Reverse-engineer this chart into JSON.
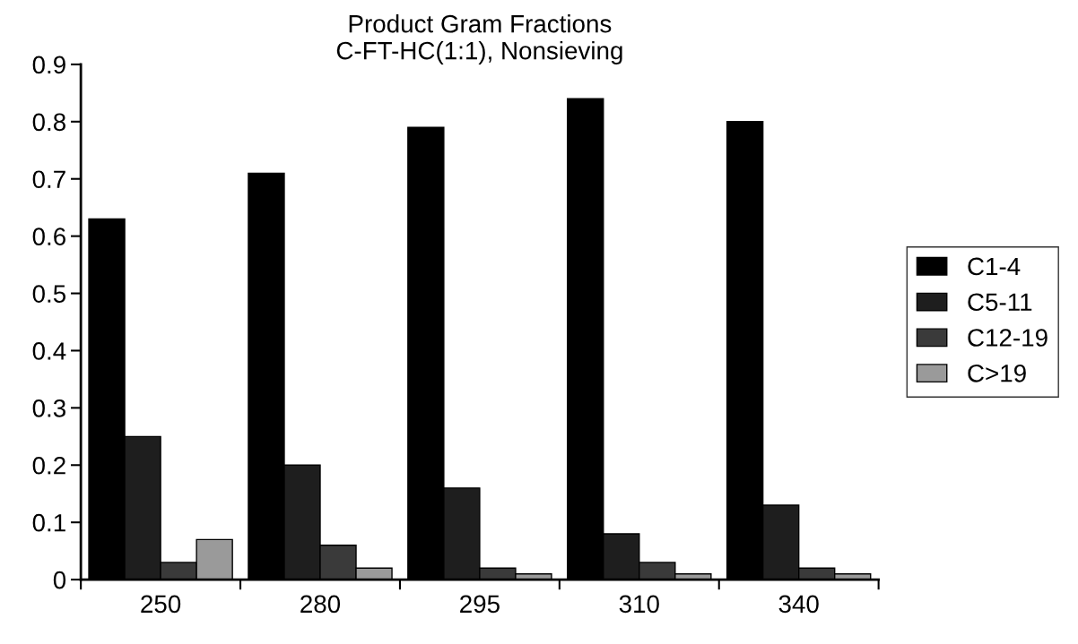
{
  "chart_data": {
    "type": "bar",
    "title": "Product Gram Fractions\nC-FT-HC(1:1), Nonsieving",
    "categories": [
      "250",
      "280",
      "295",
      "310",
      "340"
    ],
    "series": [
      {
        "name": "C1-4",
        "color": "#000000",
        "values": [
          0.63,
          0.71,
          0.79,
          0.84,
          0.8
        ]
      },
      {
        "name": "C5-11",
        "color": "#1e1e1e",
        "values": [
          0.25,
          0.2,
          0.16,
          0.08,
          0.13
        ]
      },
      {
        "name": "C12-19",
        "color": "#3a3a3a",
        "values": [
          0.03,
          0.06,
          0.02,
          0.03,
          0.02
        ]
      },
      {
        "name": "C>19",
        "color": "#9a9a9a",
        "values": [
          0.07,
          0.02,
          0.01,
          0.01,
          0.01
        ]
      }
    ],
    "ylim": [
      0,
      0.9
    ],
    "yticks": [
      0,
      0.1,
      0.2,
      0.3,
      0.4,
      0.5,
      0.6,
      0.7,
      0.8,
      0.9
    ],
    "grid": false,
    "legend": "right"
  }
}
